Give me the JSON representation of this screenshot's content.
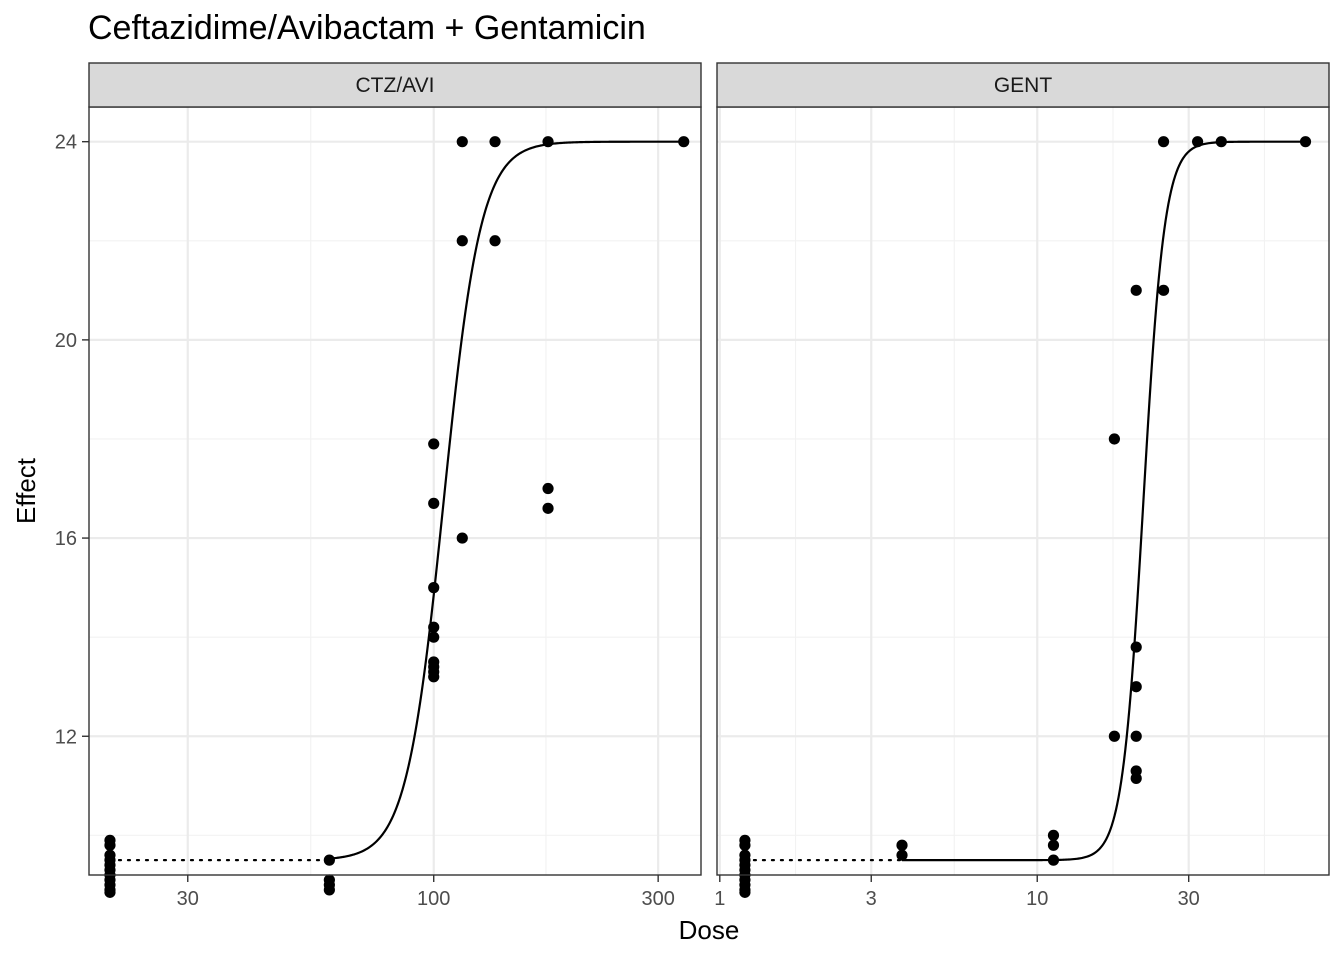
{
  "chart_data": {
    "type": "scatter",
    "title": "Ceftazidime/Avibactam + Gentamicin",
    "xlabel": "Dose",
    "ylabel": "Effect",
    "x_scale": "log10",
    "grid": true,
    "panels": [
      {
        "label": "CTZ/AVI",
        "xlim": [
          18.5,
          370
        ],
        "ylim": [
          9.2,
          24.7
        ],
        "x_ticks": [
          30,
          100,
          300
        ],
        "x_tick_labels": [
          "30",
          "100",
          "300"
        ],
        "y_ticks": [
          12,
          16,
          20,
          24
        ],
        "y_tick_labels": [
          "12",
          "16",
          "20",
          "24"
        ],
        "points": [
          [
            20.5,
            9.9
          ],
          [
            20.5,
            9.8
          ],
          [
            20.5,
            9.6
          ],
          [
            20.5,
            9.5
          ],
          [
            20.5,
            9.4
          ],
          [
            20.5,
            9.3
          ],
          [
            20.5,
            9.2
          ],
          [
            20.5,
            9.1
          ],
          [
            20.5,
            9.0
          ],
          [
            20.5,
            8.9
          ],
          [
            20.5,
            8.85
          ],
          [
            60,
            9.5
          ],
          [
            60,
            9.1
          ],
          [
            60,
            9.0
          ],
          [
            60,
            8.9
          ],
          [
            100,
            17.9
          ],
          [
            100,
            16.7
          ],
          [
            100,
            15.0
          ],
          [
            100,
            14.2
          ],
          [
            100,
            14.0
          ],
          [
            100,
            13.5
          ],
          [
            100,
            13.4
          ],
          [
            100,
            13.3
          ],
          [
            100,
            13.2
          ],
          [
            115,
            24.0
          ],
          [
            115,
            22.0
          ],
          [
            115,
            16.0
          ],
          [
            135,
            24.0
          ],
          [
            135,
            22.0
          ],
          [
            175,
            24.0
          ],
          [
            175,
            17.0
          ],
          [
            175,
            16.6
          ],
          [
            340,
            24.0
          ]
        ],
        "curve": {
          "bottom": 9.5,
          "top": 24.0,
          "ec50": 105,
          "hill": 11,
          "x_range": [
            60,
            340
          ]
        },
        "zero_line": {
          "y": 9.5,
          "x_range": [
            20.5,
            60
          ]
        }
      },
      {
        "label": "GENT",
        "xlim": [
          0.98,
          83
        ],
        "ylim": [
          9.2,
          24.7
        ],
        "x_ticks": [
          1,
          3,
          10,
          30
        ],
        "x_tick_labels": [
          "1",
          "3",
          "10",
          "30"
        ],
        "y_ticks": [
          12,
          16,
          20,
          24
        ],
        "y_tick_labels": [
          "12",
          "16",
          "20",
          "24"
        ],
        "points": [
          [
            1.2,
            9.9
          ],
          [
            1.2,
            9.8
          ],
          [
            1.2,
            9.6
          ],
          [
            1.2,
            9.5
          ],
          [
            1.2,
            9.4
          ],
          [
            1.2,
            9.3
          ],
          [
            1.2,
            9.2
          ],
          [
            1.2,
            9.1
          ],
          [
            1.2,
            9.0
          ],
          [
            1.2,
            8.9
          ],
          [
            1.2,
            8.85
          ],
          [
            3.75,
            9.8
          ],
          [
            3.75,
            9.6
          ],
          [
            11.25,
            10.0
          ],
          [
            11.25,
            9.8
          ],
          [
            11.25,
            9.5
          ],
          [
            17.5,
            18.0
          ],
          [
            17.5,
            12.0
          ],
          [
            20.5,
            21.0
          ],
          [
            20.5,
            13.8
          ],
          [
            20.5,
            13.0
          ],
          [
            20.5,
            12.0
          ],
          [
            20.5,
            11.3
          ],
          [
            20.5,
            11.15
          ],
          [
            25,
            24.0
          ],
          [
            25,
            21.0
          ],
          [
            32,
            24.0
          ],
          [
            38,
            24.0
          ],
          [
            70,
            24.0
          ]
        ],
        "curve": {
          "bottom": 9.5,
          "top": 24.0,
          "ec50": 21.6,
          "hill": 13,
          "x_range": [
            3.75,
            70
          ]
        },
        "zero_line": {
          "y": 9.5,
          "x_range": [
            1.2,
            3.75
          ]
        }
      }
    ]
  }
}
